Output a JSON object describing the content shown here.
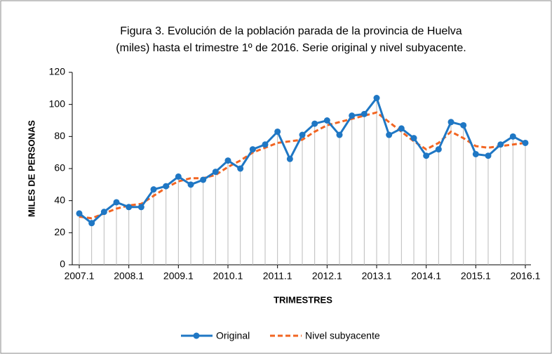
{
  "chart_data": {
    "type": "line",
    "title": "Figura 3. Evolución de la población parada de la provincia de Huelva",
    "subtitle": "(miles) hasta el trimestre 1º de 2016. Serie original y nivel subyacente.",
    "x_label": "TRIMESTRES",
    "y_label": "MILES DE PERSONAS",
    "categories": [
      "2007.1",
      null,
      null,
      null,
      "2008.1",
      null,
      null,
      null,
      "2009.1",
      null,
      null,
      null,
      "2010.1",
      null,
      null,
      null,
      "2011.1",
      null,
      null,
      null,
      "2012.1",
      null,
      null,
      null,
      "2013.1",
      null,
      null,
      null,
      "2014.1",
      null,
      null,
      null,
      "2015.1",
      null,
      null,
      null,
      "2016.1"
    ],
    "series": [
      {
        "name": "Original",
        "color": "#1f77c4",
        "values": [
          32,
          26,
          33,
          39,
          36,
          36,
          47,
          49,
          55,
          50,
          53,
          58,
          65,
          60,
          72,
          75,
          83,
          66,
          81,
          88,
          90,
          81,
          93,
          94,
          104,
          81,
          85,
          79,
          68,
          72,
          89,
          87,
          69,
          68,
          75,
          80,
          76
        ]
      },
      {
        "name": "Nivel subyacente",
        "color": "#f26522",
        "values": [
          30,
          29,
          32,
          35,
          37,
          38,
          43,
          48,
          52,
          54,
          54,
          56,
          61,
          65,
          70,
          73,
          76,
          77,
          78,
          83,
          87,
          89,
          91,
          93,
          95,
          89,
          83,
          77,
          72,
          76,
          83,
          79,
          74,
          73,
          74,
          75,
          76
        ]
      }
    ],
    "ylim": [
      0,
      120
    ],
    "yticks": [
      0,
      20,
      40,
      60,
      80,
      100,
      120
    ],
    "legend": "bottom"
  }
}
